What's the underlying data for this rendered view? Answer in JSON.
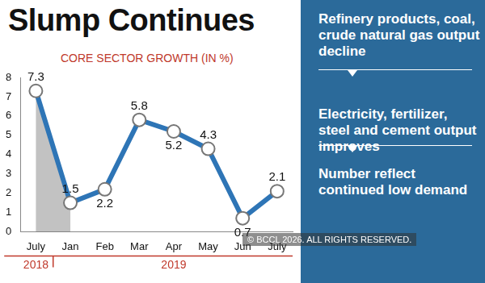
{
  "chart_data": {
    "type": "line",
    "title": "Slump Continues",
    "subtitle": "CORE SECTOR GROWTH (IN %)",
    "categories": [
      "July",
      "Jan",
      "Feb",
      "Mar",
      "Apr",
      "May",
      "Jun",
      "July"
    ],
    "values": [
      7.3,
      1.5,
      2.2,
      5.8,
      5.2,
      4.3,
      0.7,
      2.1
    ],
    "color": "#2e75b6",
    "marker": "circle",
    "line_style": "solid",
    "ylim": [
      0,
      8
    ],
    "yticks": [
      0,
      1,
      2,
      3,
      4,
      5,
      6,
      7,
      8
    ],
    "grid": false,
    "data_labels": true,
    "annotations": {
      "years": [
        "2018",
        "2019"
      ],
      "notes": [
        "Refinery products, coal, crude natural gas output decline",
        "Electricity, fertilizer, steel and cement output improves",
        "Number reflect continued low demand"
      ],
      "credit": "© BCCL 2026. ALL RIGHTS RESERVED."
    }
  }
}
